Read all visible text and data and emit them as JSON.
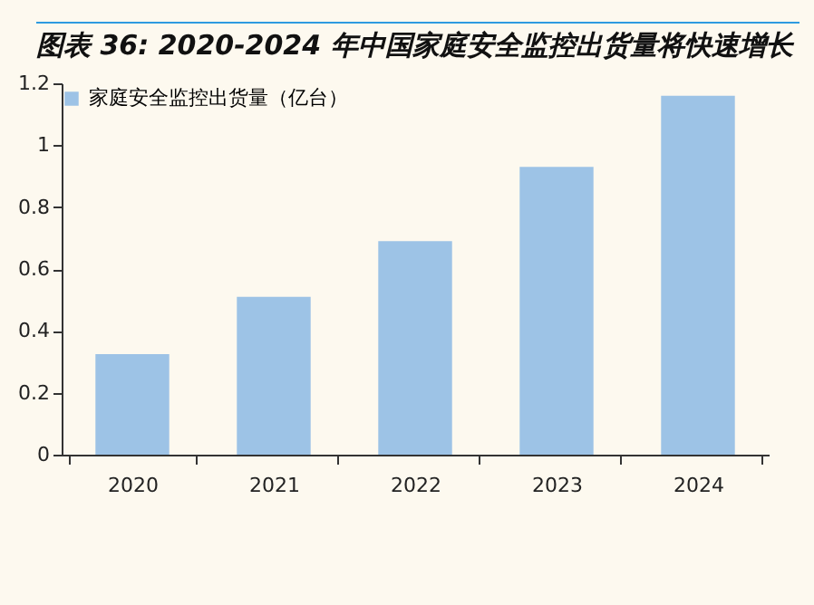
{
  "chart_data": {
    "type": "bar",
    "title": "图表 36: 2020-2024 年中国家庭安全监控出货量将快速增长",
    "categories": [
      "2020",
      "2021",
      "2022",
      "2023",
      "2024"
    ],
    "series": [
      {
        "name": "家庭安全监控出货量（亿台）",
        "color": "#9dc3e6",
        "values": [
          0.325,
          0.51,
          0.69,
          0.93,
          1.16
        ]
      }
    ],
    "ylim": [
      0,
      1.2
    ],
    "yticks": [
      0,
      0.2,
      0.4,
      0.6,
      0.8,
      1,
      1.2
    ],
    "grid": false,
    "legend": "top"
  }
}
